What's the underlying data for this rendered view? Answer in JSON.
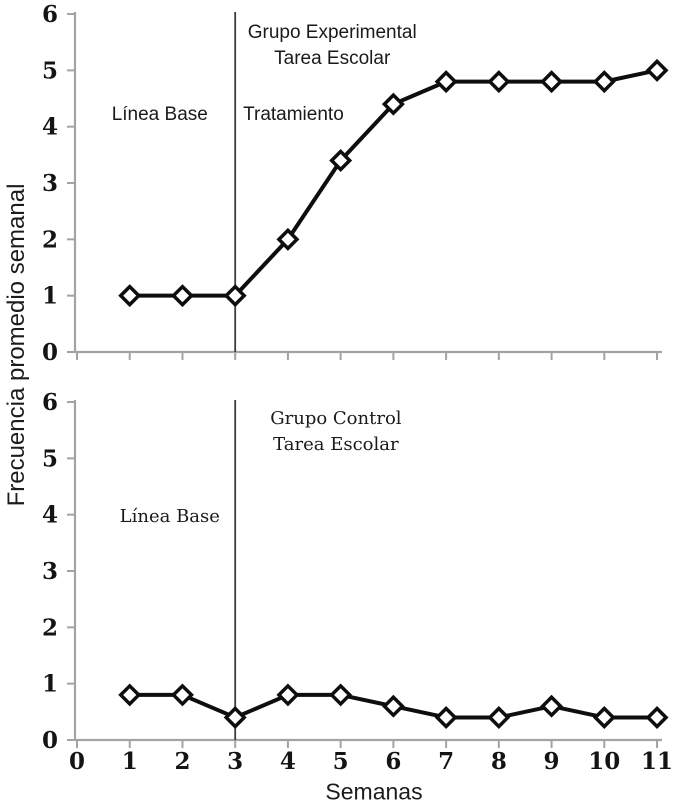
{
  "figure": {
    "ylabel": "Frecuencia promedio semanal",
    "xlabel": "Semanas"
  },
  "colors": {
    "axis": "#a3a3a3",
    "series_line": "#0e0e0e",
    "marker_fill": "#ffffff",
    "treatment_line": "#3d3d3d",
    "text": "#1a1a1a"
  },
  "chart_data": [
    {
      "type": "line",
      "name": "experimental",
      "title": "Grupo Experimental / Tarea Escolar",
      "x": [
        1,
        2,
        3,
        4,
        5,
        6,
        7,
        8,
        9,
        10,
        11
      ],
      "values": [
        1,
        1,
        1,
        2,
        3.4,
        4.4,
        4.8,
        4.8,
        4.8,
        4.8,
        5
      ],
      "vline_x": 3,
      "xlim": [
        0,
        11
      ],
      "ylim": [
        0,
        6
      ],
      "yticks": [
        0,
        1,
        2,
        3,
        4,
        5,
        6
      ],
      "xticks": [
        0,
        1,
        2,
        3,
        4,
        5,
        6,
        7,
        8,
        9,
        10,
        11
      ],
      "show_x_tick_labels": false,
      "marker": "open-diamond",
      "grid": false,
      "annotations": [
        {
          "text": "Grupo Experimental",
          "x": 4.84,
          "y": 5.7,
          "anchor": "middle",
          "style": "sans"
        },
        {
          "text": "Tarea Escolar",
          "x": 4.84,
          "y": 5.24,
          "anchor": "middle",
          "style": "sans"
        },
        {
          "text": "Línea Base",
          "x": 1.57,
          "y": 4.24,
          "anchor": "middle",
          "style": "sans"
        },
        {
          "text": "Tratamiento",
          "x": 3.15,
          "y": 4.24,
          "anchor": "start",
          "style": "sans"
        }
      ]
    },
    {
      "type": "line",
      "name": "control",
      "title": "Grupo Control / Tarea Escolar",
      "x": [
        1,
        2,
        3,
        4,
        5,
        6,
        7,
        8,
        9,
        10,
        11
      ],
      "values": [
        0.8,
        0.8,
        0.4,
        0.8,
        0.8,
        0.6,
        0.4,
        0.4,
        0.6,
        0.4,
        0.4
      ],
      "vline_x": 3,
      "xlim": [
        0,
        11
      ],
      "ylim": [
        0,
        6
      ],
      "yticks": [
        0,
        1,
        2,
        3,
        4,
        5,
        6
      ],
      "xticks": [
        0,
        1,
        2,
        3,
        4,
        5,
        6,
        7,
        8,
        9,
        10,
        11
      ],
      "show_x_tick_labels": true,
      "marker": "open-diamond",
      "grid": false,
      "annotations": [
        {
          "text": "Grupo Control",
          "x": 4.91,
          "y": 5.73,
          "anchor": "middle",
          "style": "serif"
        },
        {
          "text": "Tarea Escolar",
          "x": 4.91,
          "y": 5.27,
          "anchor": "middle",
          "style": "serif"
        },
        {
          "text": "Línea Base",
          "x": 1.76,
          "y": 3.99,
          "anchor": "middle",
          "style": "serif"
        }
      ]
    }
  ]
}
